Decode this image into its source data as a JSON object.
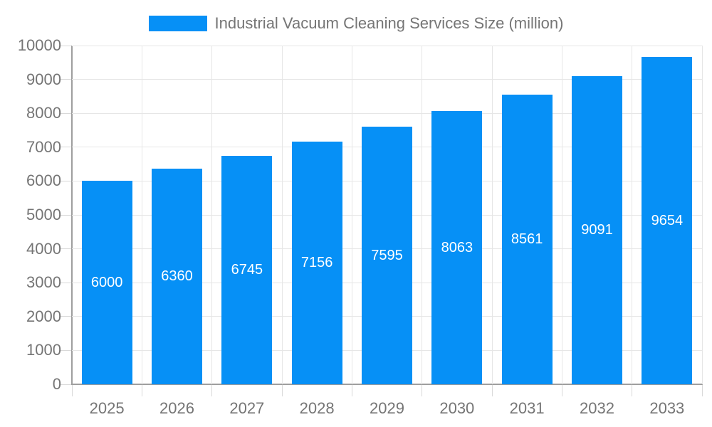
{
  "legend": {
    "position": "top-center"
  },
  "chart_data": {
    "type": "bar",
    "title": "Industrial Vacuum Cleaning Services Size (million)",
    "categories": [
      "2025",
      "2026",
      "2027",
      "2028",
      "2029",
      "2030",
      "2031",
      "2032",
      "2033"
    ],
    "values": [
      6000,
      6360,
      6745,
      7156,
      7595,
      8063,
      8561,
      9091,
      9654
    ],
    "value_labels_visible": true,
    "xlabel": "",
    "ylabel": "",
    "ylim": [
      0,
      10000
    ],
    "ytick_step": 1000,
    "ytick_labels": [
      "0",
      "1000",
      "2000",
      "3000",
      "4000",
      "5000",
      "6000",
      "7000",
      "8000",
      "9000",
      "10000"
    ],
    "grid": true,
    "legend_position": "top-center",
    "colors": {
      "bar": "#0690F6",
      "value_label": "#FFFFFF",
      "axis_text": "#757575",
      "axis_line": "#9E9E9E",
      "gridline": "#E6E6E6",
      "tick": "#D9D9D9"
    }
  }
}
